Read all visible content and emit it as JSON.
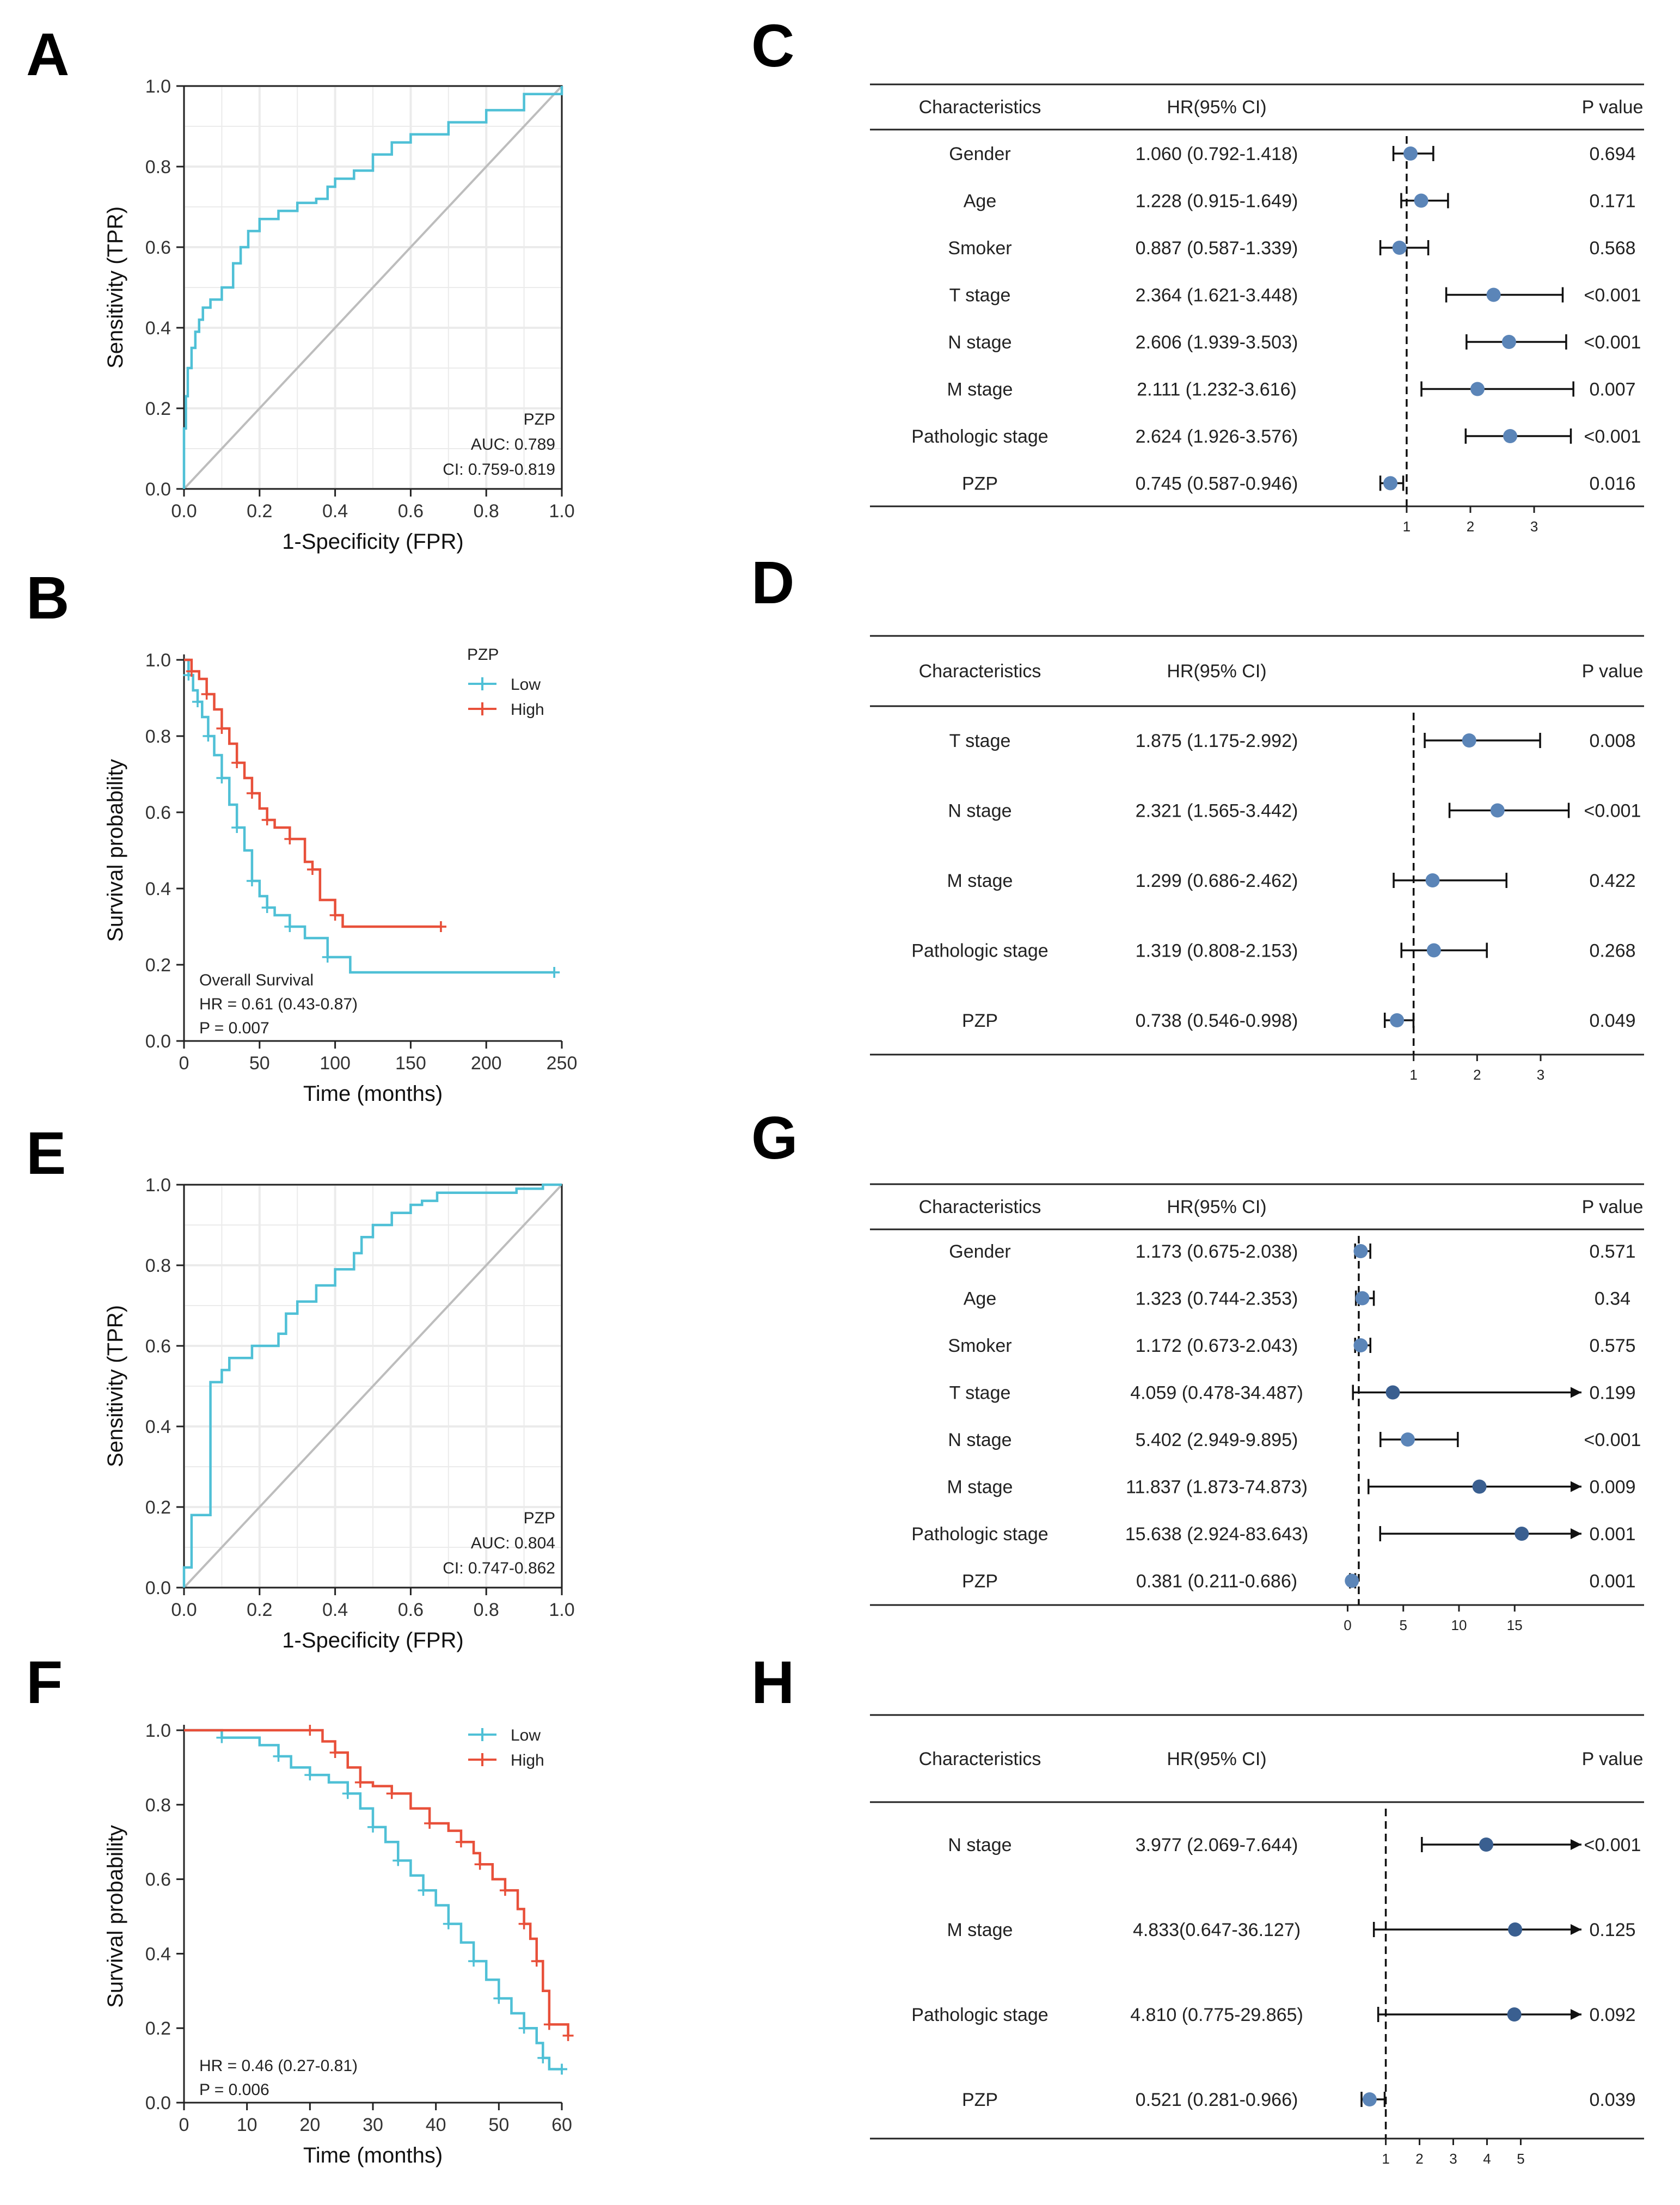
{
  "colors": {
    "low": "#4fc0d6",
    "high": "#e8503a",
    "point_light": "#5b85b8",
    "point_dark": "#3a5f90",
    "grid": "#ebebeb",
    "diag": "#bdbdbd"
  },
  "chart_data": [
    {
      "id": "A",
      "letter": "A",
      "type": "line",
      "subtype": "roc",
      "xlabel": "1-Specificity (FPR)",
      "ylabel": "Sensitivity (TPR)",
      "xlim": [
        0,
        1
      ],
      "ylim": [
        0,
        1
      ],
      "xticks": [
        "0.0",
        "0.2",
        "0.4",
        "0.6",
        "0.8",
        "1.0"
      ],
      "yticks": [
        "0.0",
        "0.2",
        "0.4",
        "0.6",
        "0.8",
        "1.0"
      ],
      "annotation": [
        "PZP",
        "AUC: 0.789",
        "CI: 0.759-0.819"
      ],
      "series": [
        {
          "name": "ROC",
          "x": [
            0,
            0,
            0.005,
            0.01,
            0.02,
            0.03,
            0.04,
            0.05,
            0.07,
            0.1,
            0.13,
            0.15,
            0.17,
            0.2,
            0.25,
            0.3,
            0.35,
            0.38,
            0.4,
            0.45,
            0.5,
            0.55,
            0.6,
            0.7,
            0.8,
            0.9,
            1.0
          ],
          "y": [
            0,
            0.15,
            0.23,
            0.3,
            0.35,
            0.39,
            0.42,
            0.45,
            0.47,
            0.5,
            0.56,
            0.6,
            0.64,
            0.67,
            0.69,
            0.71,
            0.72,
            0.75,
            0.77,
            0.79,
            0.83,
            0.86,
            0.88,
            0.91,
            0.94,
            0.98,
            1.0
          ]
        }
      ]
    },
    {
      "id": "B",
      "letter": "B",
      "type": "line",
      "subtype": "kaplan-meier",
      "xlabel": "Time (months)",
      "ylabel": "Survival probability",
      "xlim": [
        0,
        250
      ],
      "ylim": [
        0,
        1
      ],
      "xticks": [
        "0",
        "50",
        "100",
        "150",
        "200",
        "250"
      ],
      "yticks": [
        "0.0",
        "0.2",
        "0.4",
        "0.6",
        "0.8",
        "1.0"
      ],
      "legend": {
        "title": "PZP",
        "position": "top-right"
      },
      "annotation": [
        "Overall Survival",
        "HR = 0.61 (0.43-0.87)",
        "P = 0.007"
      ],
      "series": [
        {
          "name": "Low",
          "color_key": "low",
          "x": [
            0,
            3,
            6,
            9,
            12,
            16,
            20,
            25,
            30,
            35,
            40,
            45,
            50,
            55,
            60,
            70,
            80,
            95,
            110,
            245
          ],
          "y": [
            1.0,
            0.96,
            0.92,
            0.89,
            0.85,
            0.8,
            0.75,
            0.69,
            0.62,
            0.56,
            0.5,
            0.42,
            0.38,
            0.35,
            0.33,
            0.3,
            0.27,
            0.22,
            0.18,
            0.18
          ]
        },
        {
          "name": "High",
          "color_key": "high",
          "x": [
            0,
            5,
            10,
            15,
            20,
            25,
            30,
            35,
            40,
            45,
            50,
            55,
            60,
            70,
            80,
            85,
            90,
            100,
            105,
            170
          ],
          "y": [
            1.0,
            0.97,
            0.95,
            0.91,
            0.87,
            0.82,
            0.78,
            0.73,
            0.69,
            0.65,
            0.61,
            0.58,
            0.56,
            0.53,
            0.47,
            0.45,
            0.37,
            0.33,
            0.3,
            0.3
          ]
        }
      ]
    },
    {
      "id": "E",
      "letter": "E",
      "type": "line",
      "subtype": "roc",
      "xlabel": "1-Specificity (FPR)",
      "ylabel": "Sensitivity (TPR)",
      "xlim": [
        0,
        1
      ],
      "ylim": [
        0,
        1
      ],
      "xticks": [
        "0.0",
        "0.2",
        "0.4",
        "0.6",
        "0.8",
        "1.0"
      ],
      "yticks": [
        "0.0",
        "0.2",
        "0.4",
        "0.6",
        "0.8",
        "1.0"
      ],
      "annotation": [
        "PZP",
        "AUC: 0.804",
        "CI: 0.747-0.862"
      ],
      "series": [
        {
          "name": "ROC",
          "x": [
            0,
            0,
            0.02,
            0.02,
            0.07,
            0.07,
            0.1,
            0.12,
            0.16,
            0.18,
            0.25,
            0.27,
            0.3,
            0.35,
            0.4,
            0.45,
            0.47,
            0.5,
            0.55,
            0.6,
            0.63,
            0.67,
            0.85,
            0.88,
            0.95,
            1.0
          ],
          "y": [
            0,
            0.05,
            0.07,
            0.18,
            0.26,
            0.51,
            0.54,
            0.57,
            0.57,
            0.6,
            0.63,
            0.68,
            0.71,
            0.75,
            0.79,
            0.83,
            0.87,
            0.9,
            0.93,
            0.95,
            0.96,
            0.98,
            0.98,
            0.99,
            1.0,
            1.0
          ]
        }
      ]
    },
    {
      "id": "F",
      "letter": "F",
      "type": "line",
      "subtype": "kaplan-meier",
      "xlabel": "Time (months)",
      "ylabel": "Survival probability",
      "xlim": [
        0,
        60
      ],
      "ylim": [
        0,
        1
      ],
      "xticks": [
        "0",
        "10",
        "20",
        "30",
        "40",
        "50",
        "60"
      ],
      "yticks": [
        "0.0",
        "0.2",
        "0.4",
        "0.6",
        "0.8",
        "1.0"
      ],
      "legend": {
        "title": "",
        "position": "top-right"
      },
      "annotation": [
        "HR = 0.46 (0.27-0.81)",
        "P = 0.006"
      ],
      "series": [
        {
          "name": "Low",
          "color_key": "low",
          "x": [
            0,
            6,
            12,
            15,
            17,
            20,
            23,
            26,
            28,
            30,
            32,
            34,
            36,
            38,
            40,
            42,
            44,
            46,
            48,
            50,
            52,
            54,
            56,
            57,
            58,
            60
          ],
          "y": [
            1.0,
            0.98,
            0.96,
            0.93,
            0.9,
            0.88,
            0.86,
            0.83,
            0.79,
            0.74,
            0.7,
            0.65,
            0.61,
            0.57,
            0.53,
            0.48,
            0.43,
            0.38,
            0.33,
            0.28,
            0.24,
            0.2,
            0.16,
            0.12,
            0.09,
            0.09
          ]
        },
        {
          "name": "High",
          "color_key": "high",
          "x": [
            0,
            20,
            22,
            24,
            26,
            28,
            30,
            33,
            36,
            39,
            42,
            44,
            46,
            47,
            49,
            51,
            53,
            54,
            55,
            56,
            57,
            58,
            61
          ],
          "y": [
            1.0,
            1.0,
            0.97,
            0.94,
            0.9,
            0.86,
            0.85,
            0.83,
            0.79,
            0.75,
            0.73,
            0.7,
            0.67,
            0.64,
            0.6,
            0.57,
            0.52,
            0.48,
            0.44,
            0.38,
            0.3,
            0.21,
            0.18
          ]
        }
      ]
    },
    {
      "id": "C",
      "letter": "C",
      "type": "forest",
      "headers": [
        "Characteristics",
        "HR(95% CI)",
        "P value"
      ],
      "xlim": [
        -0.4,
        3.7
      ],
      "ref": 1,
      "xticks": [
        "1",
        "2",
        "3"
      ],
      "tick_values": [
        1,
        2,
        3
      ],
      "rows": [
        {
          "name": "Gender",
          "hr_text": "1.060 (0.792-1.418)",
          "p": "0.694",
          "hr": 1.06,
          "lo": 0.792,
          "hi": 1.418,
          "arrow": false
        },
        {
          "name": "Age",
          "hr_text": "1.228 (0.915-1.649)",
          "p": "0.171",
          "hr": 1.228,
          "lo": 0.915,
          "hi": 1.649,
          "arrow": false
        },
        {
          "name": "Smoker",
          "hr_text": "0.887 (0.587-1.339)",
          "p": "0.568",
          "hr": 0.887,
          "lo": 0.587,
          "hi": 1.339,
          "arrow": false
        },
        {
          "name": "T stage",
          "hr_text": "2.364 (1.621-3.448)",
          "p": "<0.001",
          "hr": 2.364,
          "lo": 1.621,
          "hi": 3.448,
          "arrow": false
        },
        {
          "name": "N stage",
          "hr_text": "2.606 (1.939-3.503)",
          "p": "<0.001",
          "hr": 2.606,
          "lo": 1.939,
          "hi": 3.503,
          "arrow": false
        },
        {
          "name": "M stage",
          "hr_text": "2.111 (1.232-3.616)",
          "p": "0.007",
          "hr": 2.111,
          "lo": 1.232,
          "hi": 3.616,
          "arrow": false
        },
        {
          "name": "Pathologic stage",
          "hr_text": "2.624 (1.926-3.576)",
          "p": "<0.001",
          "hr": 2.624,
          "lo": 1.926,
          "hi": 3.576,
          "arrow": false
        },
        {
          "name": "PZP",
          "hr_text": "0.745 (0.587-0.946)",
          "p": "0.016",
          "hr": 0.745,
          "lo": 0.587,
          "hi": 0.946,
          "arrow": false
        }
      ]
    },
    {
      "id": "D",
      "letter": "D",
      "type": "forest",
      "headers": [
        "Characteristics",
        "HR(95% CI)",
        "P value"
      ],
      "xlim": [
        -0.3,
        3.6
      ],
      "ref": 1,
      "xticks": [
        "1",
        "2",
        "3"
      ],
      "tick_values": [
        1,
        2,
        3
      ],
      "rows": [
        {
          "name": "T stage",
          "hr_text": "1.875 (1.175-2.992)",
          "p": "0.008",
          "hr": 1.875,
          "lo": 1.175,
          "hi": 2.992,
          "arrow": false
        },
        {
          "name": "N stage",
          "hr_text": "2.321 (1.565-3.442)",
          "p": "<0.001",
          "hr": 2.321,
          "lo": 1.565,
          "hi": 3.442,
          "arrow": false
        },
        {
          "name": "M stage",
          "hr_text": "1.299 (0.686-2.462)",
          "p": "0.422",
          "hr": 1.299,
          "lo": 0.686,
          "hi": 2.462,
          "arrow": false
        },
        {
          "name": "Pathologic stage",
          "hr_text": "1.319 (0.808-2.153)",
          "p": "0.268",
          "hr": 1.319,
          "lo": 0.808,
          "hi": 2.153,
          "arrow": false
        },
        {
          "name": "PZP",
          "hr_text": "0.738 (0.546-0.998)",
          "p": "0.049",
          "hr": 0.738,
          "lo": 0.546,
          "hi": 0.998,
          "arrow": false
        }
      ]
    },
    {
      "id": "G",
      "letter": "G",
      "type": "forest",
      "headers": [
        "Characteristics",
        "HR(95% CI)",
        "P value"
      ],
      "xlim": [
        -1.0,
        21.0
      ],
      "ref": 1,
      "xticks": [
        "0",
        "5",
        "10",
        "15"
      ],
      "tick_values": [
        0,
        5,
        10,
        15
      ],
      "rows": [
        {
          "name": "Gender",
          "hr_text": "1.173 (0.675-2.038)",
          "p": "0.571",
          "hr": 1.173,
          "lo": 0.675,
          "hi": 2.038,
          "arrow": false
        },
        {
          "name": "Age",
          "hr_text": "1.323 (0.744-2.353)",
          "p": "0.34",
          "hr": 1.323,
          "lo": 0.744,
          "hi": 2.353,
          "arrow": false
        },
        {
          "name": "Smoker",
          "hr_text": "1.172 (0.673-2.043)",
          "p": "0.575",
          "hr": 1.172,
          "lo": 0.673,
          "hi": 2.043,
          "arrow": false
        },
        {
          "name": "T stage",
          "hr_text": "4.059 (0.478-34.487)",
          "p": "0.199",
          "hr": 4.059,
          "lo": 0.478,
          "hi": 34.487,
          "arrow": true
        },
        {
          "name": "N stage",
          "hr_text": "5.402 (2.949-9.895)",
          "p": "<0.001",
          "hr": 5.402,
          "lo": 2.949,
          "hi": 9.895,
          "arrow": false
        },
        {
          "name": "M stage",
          "hr_text": "11.837 (1.873-74.873)",
          "p": "0.009",
          "hr": 11.837,
          "lo": 1.873,
          "hi": 74.873,
          "arrow": true
        },
        {
          "name": "Pathologic stage",
          "hr_text": "15.638 (2.924-83.643)",
          "p": "0.001",
          "hr": 15.638,
          "lo": 2.924,
          "hi": 83.643,
          "arrow": true
        },
        {
          "name": "PZP",
          "hr_text": "0.381 (0.211-0.686)",
          "p": "0.001",
          "hr": 0.381,
          "lo": 0.211,
          "hi": 0.686,
          "arrow": false
        }
      ]
    },
    {
      "id": "H",
      "letter": "H",
      "type": "forest",
      "headers": [
        "Characteristics",
        "HR(95% CI)",
        "P value"
      ],
      "xlim": [
        -0.3,
        6.8
      ],
      "ref": 1,
      "xticks": [
        "1",
        "2",
        "3",
        "4",
        "5"
      ],
      "tick_values": [
        1,
        2,
        3,
        4,
        5
      ],
      "rows": [
        {
          "name": "N stage",
          "hr_text": "3.977 (2.069-7.644)",
          "p": "<0.001",
          "hr": 3.977,
          "lo": 2.069,
          "hi": 7.644,
          "arrow": true
        },
        {
          "name": "M stage",
          "hr_text": "4.833(0.647-36.127)",
          "p": "0.125",
          "hr": 4.833,
          "lo": 0.647,
          "hi": 36.127,
          "arrow": true
        },
        {
          "name": "Pathologic stage",
          "hr_text": "4.810 (0.775-29.865)",
          "p": "0.092",
          "hr": 4.81,
          "lo": 0.775,
          "hi": 29.865,
          "arrow": true
        },
        {
          "name": "PZP",
          "hr_text": "0.521 (0.281-0.966)",
          "p": "0.039",
          "hr": 0.521,
          "lo": 0.281,
          "hi": 0.966,
          "arrow": false
        }
      ]
    }
  ]
}
